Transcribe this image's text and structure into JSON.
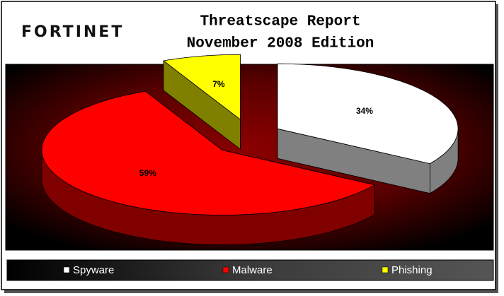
{
  "header": {
    "logo": "FORTINET"
  },
  "chart_data": {
    "type": "pie",
    "title": "Threatscape Report",
    "subtitle": "November 2008 Edition",
    "categories": [
      "Spyware",
      "Malware",
      "Phishing"
    ],
    "values": [
      34,
      59,
      7
    ],
    "value_labels": [
      "34%",
      "59%",
      "7%"
    ],
    "colors": [
      "#ffffff",
      "#ff0000",
      "#ffff00"
    ],
    "legend": "bottom"
  }
}
